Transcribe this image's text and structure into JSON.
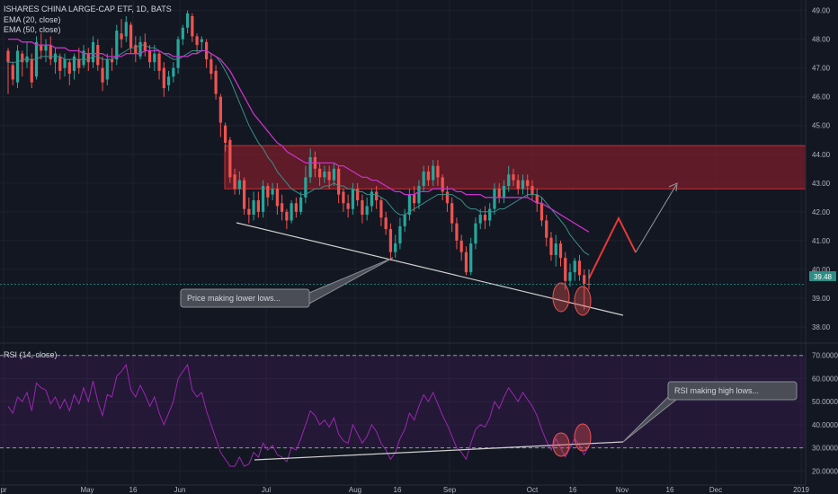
{
  "legend": {
    "symbol_line": "ISHARES CHINA LARGE-CAP ETF, 1D, BATS",
    "ema20": "EMA (20, close)",
    "ema50": "EMA (50, close)"
  },
  "rsi_legend": "RSI (14, close)",
  "price_badge": "39.48",
  "price_axis": [
    "49.00",
    "48.00",
    "47.00",
    "46.00",
    "45.00",
    "44.00",
    "43.00",
    "42.00",
    "41.00",
    "40.00",
    "39.00",
    "38.00"
  ],
  "rsi_axis": [
    "70.0000",
    "60.0000",
    "50.0000",
    "40.0000",
    "30.0000",
    "20.0000"
  ],
  "x_axis": [
    "pr",
    "May",
    "16",
    "Jun",
    "Jul",
    "Aug",
    "16",
    "Sep",
    "Oct",
    "16",
    "Nov",
    "16",
    "Dec",
    "2019"
  ],
  "annotations": {
    "price_note": "Price making lower lows...",
    "rsi_note": "RSI making high lows..."
  },
  "colors": {
    "background": "#131722",
    "up": "#26a69a",
    "down": "#ef5350",
    "ema20": "#3b8e8a",
    "ema50": "#c832c8",
    "rsi": "#9c27b0",
    "zone": "#7a1e2a",
    "zone_border": "#d32f2f",
    "trendline": "#cfcfcf"
  },
  "chart_data": {
    "type": "candlestick",
    "price_ylim": [
      37.5,
      49.3
    ],
    "rsi_ylim": [
      17,
      73
    ],
    "rsi_levels": [
      70,
      30
    ],
    "resistance_zone": [
      42.8,
      44.3
    ],
    "candles": [
      [
        47.6,
        47.2,
        47.7,
        46.1
      ],
      [
        47.1,
        46.6,
        47.2,
        46.4
      ],
      [
        46.5,
        47.6,
        47.8,
        46.3
      ],
      [
        47.5,
        47.2,
        47.6,
        46.7
      ],
      [
        47.2,
        47.4,
        47.9,
        47.0
      ],
      [
        47.3,
        46.5,
        47.5,
        46.3
      ],
      [
        46.7,
        47.9,
        48.1,
        46.6
      ],
      [
        47.8,
        47.6,
        48.2,
        47.3
      ],
      [
        47.6,
        47.8,
        48.0,
        47.2
      ],
      [
        47.8,
        47.3,
        48.1,
        47.1
      ],
      [
        47.2,
        47.5,
        47.7,
        46.8
      ],
      [
        47.4,
        46.9,
        47.5,
        46.6
      ],
      [
        47.0,
        47.3,
        47.5,
        46.7
      ],
      [
        47.2,
        46.8,
        47.3,
        46.4
      ],
      [
        46.9,
        47.4,
        47.5,
        46.6
      ],
      [
        47.3,
        47.0,
        47.7,
        46.8
      ],
      [
        47.1,
        47.6,
        47.8,
        47.0
      ],
      [
        47.5,
        47.2,
        47.7,
        46.9
      ],
      [
        47.2,
        47.9,
        48.1,
        47.0
      ],
      [
        47.8,
        47.1,
        48.0,
        46.9
      ],
      [
        47.0,
        46.5,
        47.4,
        46.2
      ],
      [
        46.6,
        47.3,
        47.5,
        46.4
      ],
      [
        47.3,
        47.2,
        47.7,
        46.9
      ],
      [
        47.3,
        48.3,
        48.5,
        47.1
      ],
      [
        48.2,
        48.0,
        48.7,
        47.7
      ],
      [
        48.1,
        48.6,
        48.8,
        47.9
      ],
      [
        48.5,
        47.7,
        48.6,
        47.5
      ],
      [
        47.8,
        47.5,
        48.1,
        47.2
      ],
      [
        47.4,
        47.9,
        48.1,
        47.3
      ],
      [
        47.9,
        47.6,
        48.2,
        47.4
      ],
      [
        47.6,
        47.2,
        47.8,
        47.0
      ],
      [
        47.2,
        47.5,
        47.8,
        46.9
      ],
      [
        47.5,
        46.9,
        47.6,
        46.6
      ],
      [
        47.0,
        46.3,
        47.2,
        46.0
      ],
      [
        46.4,
        46.7,
        46.9,
        46.2
      ],
      [
        46.7,
        47.0,
        47.2,
        46.5
      ],
      [
        47.0,
        48.0,
        48.1,
        46.8
      ],
      [
        48.0,
        48.4,
        48.5,
        47.8
      ],
      [
        48.4,
        48.9,
        49.0,
        48.2
      ],
      [
        48.8,
        48.1,
        48.9,
        47.9
      ],
      [
        48.1,
        47.8,
        48.2,
        47.5
      ],
      [
        47.9,
        48.0,
        48.1,
        47.6
      ],
      [
        47.9,
        47.3,
        48.0,
        47.0
      ],
      [
        47.3,
        46.8,
        47.5,
        46.6
      ],
      [
        46.9,
        46.1,
        47.1,
        45.9
      ],
      [
        46.0,
        45.1,
        46.1,
        44.6
      ],
      [
        45.0,
        44.4,
        45.1,
        44.1
      ],
      [
        44.5,
        43.2,
        44.6,
        43.0
      ],
      [
        43.3,
        42.8,
        43.5,
        42.6
      ],
      [
        42.8,
        43.1,
        43.4,
        42.6
      ],
      [
        43.1,
        42.1,
        43.2,
        41.9
      ],
      [
        42.1,
        41.9,
        42.5,
        41.6
      ],
      [
        41.9,
        42.4,
        42.7,
        41.7
      ],
      [
        42.4,
        42.0,
        42.7,
        41.8
      ],
      [
        42.0,
        42.9,
        43.1,
        41.8
      ],
      [
        42.9,
        42.5,
        43.0,
        42.2
      ],
      [
        42.6,
        42.8,
        43.0,
        42.4
      ],
      [
        42.8,
        42.2,
        43.0,
        41.9
      ],
      [
        42.3,
        42.0,
        42.6,
        41.7
      ],
      [
        42.0,
        41.7,
        42.1,
        41.4
      ],
      [
        41.7,
        42.3,
        42.4,
        41.6
      ],
      [
        42.3,
        42.0,
        42.5,
        41.8
      ],
      [
        42.0,
        42.5,
        42.7,
        41.9
      ],
      [
        42.5,
        43.2,
        43.6,
        42.3
      ],
      [
        43.2,
        43.9,
        44.2,
        43.0
      ],
      [
        43.9,
        43.5,
        44.1,
        43.2
      ],
      [
        43.5,
        43.2,
        43.7,
        42.9
      ],
      [
        43.2,
        43.4,
        43.6,
        43.0
      ],
      [
        43.4,
        43.1,
        43.6,
        42.8
      ],
      [
        43.1,
        43.5,
        43.7,
        42.9
      ],
      [
        43.5,
        42.6,
        43.6,
        42.3
      ],
      [
        42.7,
        42.3,
        42.8,
        42.0
      ],
      [
        42.3,
        42.1,
        42.6,
        41.8
      ],
      [
        42.1,
        42.8,
        43.0,
        41.9
      ],
      [
        42.8,
        42.4,
        43.0,
        42.2
      ],
      [
        42.4,
        41.9,
        42.6,
        41.6
      ],
      [
        41.9,
        42.2,
        42.5,
        41.7
      ],
      [
        42.2,
        42.7,
        42.8,
        42.0
      ],
      [
        42.7,
        42.4,
        42.9,
        42.1
      ],
      [
        42.4,
        41.8,
        42.5,
        41.5
      ],
      [
        41.8,
        41.4,
        42.0,
        41.2
      ],
      [
        41.4,
        40.6,
        41.6,
        40.3
      ],
      [
        40.6,
        40.9,
        41.2,
        40.4
      ],
      [
        40.9,
        41.5,
        41.8,
        40.7
      ],
      [
        41.5,
        41.9,
        42.1,
        41.3
      ],
      [
        41.9,
        42.6,
        42.8,
        41.7
      ],
      [
        42.6,
        42.3,
        42.9,
        42.0
      ],
      [
        42.3,
        42.9,
        43.1,
        42.1
      ],
      [
        42.9,
        43.4,
        43.6,
        42.7
      ],
      [
        43.4,
        43.1,
        43.6,
        42.9
      ],
      [
        43.1,
        43.6,
        43.8,
        42.9
      ],
      [
        43.6,
        43.2,
        43.8,
        42.9
      ],
      [
        43.2,
        42.7,
        43.3,
        42.4
      ],
      [
        42.7,
        42.3,
        42.9,
        42.0
      ],
      [
        42.3,
        41.6,
        42.5,
        41.3
      ],
      [
        41.6,
        41.0,
        41.8,
        40.7
      ],
      [
        41.0,
        40.6,
        41.2,
        40.3
      ],
      [
        40.6,
        39.9,
        40.8,
        39.8
      ],
      [
        39.9,
        40.9,
        41.1,
        39.8
      ],
      [
        40.9,
        41.6,
        41.8,
        40.7
      ],
      [
        41.6,
        41.9,
        42.1,
        41.4
      ],
      [
        41.9,
        41.7,
        42.2,
        41.4
      ],
      [
        41.7,
        42.1,
        42.3,
        41.5
      ],
      [
        42.1,
        42.8,
        43.0,
        41.9
      ],
      [
        42.8,
        42.5,
        43.0,
        42.3
      ],
      [
        42.5,
        42.9,
        43.1,
        42.3
      ],
      [
        42.9,
        43.3,
        43.6,
        42.7
      ],
      [
        43.3,
        43.1,
        43.5,
        42.9
      ],
      [
        43.1,
        42.8,
        43.3,
        42.6
      ],
      [
        42.8,
        43.1,
        43.3,
        42.6
      ],
      [
        43.1,
        42.9,
        43.3,
        42.5
      ],
      [
        42.9,
        42.6,
        43.1,
        42.4
      ],
      [
        42.6,
        42.3,
        42.8,
        42.0
      ],
      [
        42.3,
        41.7,
        42.5,
        41.5
      ],
      [
        41.7,
        41.1,
        41.9,
        40.8
      ],
      [
        41.1,
        40.5,
        41.3,
        40.3
      ],
      [
        40.5,
        40.9,
        41.2,
        40.1
      ],
      [
        40.9,
        40.4,
        41.0,
        40.1
      ],
      [
        40.4,
        39.6,
        40.6,
        39.3
      ],
      [
        39.6,
        39.9,
        40.2,
        39.4
      ],
      [
        39.9,
        40.3,
        40.4,
        39.6
      ],
      [
        40.3,
        39.8,
        40.5,
        39.6
      ],
      [
        39.8,
        39.5,
        40.0,
        38.6
      ],
      [
        39.5,
        39.48,
        39.7,
        39.3
      ]
    ],
    "ema20": [
      47.2,
      47.2,
      47.2,
      47.3,
      47.3,
      47.3,
      47.3,
      47.4,
      47.4,
      47.4,
      47.4,
      47.4,
      47.3,
      47.3,
      47.3,
      47.3,
      47.3,
      47.3,
      47.4,
      47.4,
      47.3,
      47.3,
      47.3,
      47.4,
      47.5,
      47.6,
      47.7,
      47.7,
      47.8,
      47.8,
      47.7,
      47.7,
      47.6,
      47.5,
      47.4,
      47.3,
      47.3,
      47.4,
      47.5,
      47.6,
      47.6,
      47.6,
      47.6,
      47.5,
      47.4,
      47.2,
      46.9,
      46.6,
      46.2,
      45.8,
      45.4,
      45.0,
      44.7,
      44.4,
      44.2,
      43.9,
      43.7,
      43.4,
      43.2,
      43.0,
      42.8,
      42.7,
      42.6,
      42.6,
      42.7,
      42.8,
      42.8,
      42.9,
      42.9,
      43.0,
      42.9,
      42.9,
      42.8,
      42.8,
      42.7,
      42.7,
      42.6,
      42.6,
      42.6,
      42.5,
      42.4,
      42.2,
      42.0,
      41.9,
      41.9,
      42.0,
      42.1,
      42.2,
      42.3,
      42.4,
      42.5,
      42.6,
      42.6,
      42.6,
      42.6,
      42.5,
      42.4,
      42.2,
      42.1,
      42.1,
      42.0,
      42.0,
      42.0,
      42.0,
      42.1,
      42.1,
      42.2,
      42.3,
      42.4,
      42.5,
      42.6,
      42.6,
      42.6,
      42.5,
      42.3,
      42.1,
      41.9,
      41.7,
      41.5,
      41.2,
      41.0,
      40.8,
      40.6,
      40.5
    ],
    "ema50": [
      48.0,
      48.0,
      48.0,
      47.9,
      47.9,
      47.9,
      47.8,
      47.8,
      47.8,
      47.8,
      47.7,
      47.7,
      47.7,
      47.6,
      47.6,
      47.6,
      47.5,
      47.5,
      47.5,
      47.5,
      47.5,
      47.4,
      47.4,
      47.4,
      47.4,
      47.5,
      47.5,
      47.5,
      47.5,
      47.6,
      47.6,
      47.6,
      47.6,
      47.5,
      47.5,
      47.4,
      47.4,
      47.4,
      47.4,
      47.5,
      47.5,
      47.6,
      47.6,
      47.5,
      47.4,
      47.3,
      47.1,
      46.9,
      46.6,
      46.3,
      46.0,
      45.7,
      45.4,
      45.2,
      45.0,
      44.8,
      44.6,
      44.4,
      44.3,
      44.1,
      44.0,
      43.9,
      43.8,
      43.7,
      43.7,
      43.7,
      43.7,
      43.7,
      43.7,
      43.7,
      43.6,
      43.6,
      43.5,
      43.4,
      43.3,
      43.2,
      43.2,
      43.1,
      43.1,
      43.0,
      42.9,
      42.8,
      42.7,
      42.7,
      42.6,
      42.6,
      42.6,
      42.7,
      42.7,
      42.7,
      42.8,
      42.8,
      42.8,
      42.8,
      42.8,
      42.7,
      42.7,
      42.6,
      42.6,
      42.6,
      42.6,
      42.5,
      42.5,
      42.5,
      42.5,
      42.5,
      42.5,
      42.5,
      42.5,
      42.5,
      42.5,
      42.4,
      42.3,
      42.3,
      42.2,
      42.1,
      42.0,
      41.9,
      41.8,
      41.7,
      41.6,
      41.5,
      41.4,
      41.3
    ],
    "rsi": [
      48,
      45,
      52,
      50,
      54,
      46,
      58,
      56,
      55,
      49,
      52,
      47,
      51,
      46,
      53,
      49,
      56,
      50,
      59,
      50,
      44,
      53,
      52,
      61,
      63,
      66,
      55,
      52,
      57,
      53,
      48,
      52,
      45,
      40,
      45,
      50,
      60,
      63,
      66,
      55,
      52,
      54,
      46,
      40,
      34,
      28,
      25,
      22,
      22,
      26,
      22,
      23,
      28,
      26,
      32,
      29,
      31,
      27,
      26,
      24,
      30,
      29,
      34,
      40,
      46,
      44,
      40,
      42,
      39,
      43,
      36,
      33,
      32,
      40,
      36,
      32,
      35,
      40,
      37,
      32,
      29,
      25,
      28,
      34,
      38,
      45,
      42,
      48,
      53,
      50,
      54,
      49,
      44,
      40,
      35,
      30,
      28,
      25,
      32,
      38,
      40,
      39,
      43,
      50,
      47,
      52,
      56,
      53,
      50,
      54,
      51,
      48,
      44,
      38,
      33,
      29,
      34,
      30,
      26,
      30,
      34,
      31,
      27,
      31
    ],
    "arrow_path": [
      [
        42.0,
        40.0
      ],
      [
        41.5,
        41.5
      ],
      [
        40.2,
        40.3
      ],
      [
        39.2,
        42.9
      ]
    ]
  }
}
